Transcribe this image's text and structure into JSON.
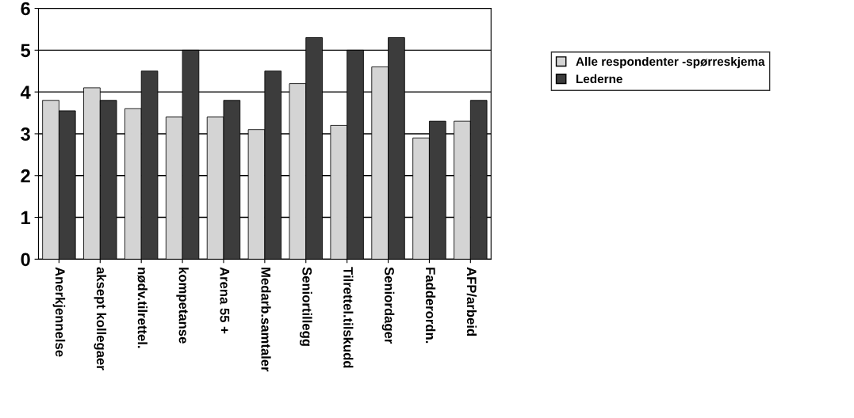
{
  "chart_data": {
    "type": "bar",
    "categories": [
      "Anerkjennelse",
      "aksept kollegaer",
      "nødv.tilrettel.",
      "kompetanse",
      "Arena 55 +",
      "Medarb.samtaler",
      "Seniortillegg",
      "Tilrettel.tilskudd",
      "Seniordager",
      "Fadderordn.",
      "AFP/arbeid"
    ],
    "series": [
      {
        "name": "Alle respondenter -spørreskjema",
        "color": "#d4d4d4",
        "values": [
          3.8,
          4.1,
          3.6,
          3.4,
          3.4,
          3.1,
          4.2,
          3.2,
          4.6,
          2.9,
          3.3
        ]
      },
      {
        "name": "Lederne",
        "color": "#3c3c3c",
        "values": [
          3.55,
          3.8,
          4.5,
          5.0,
          3.8,
          4.5,
          5.3,
          5.0,
          5.3,
          3.3,
          3.8
        ]
      }
    ],
    "ylim": [
      0,
      6
    ],
    "yticks": [
      0,
      1,
      2,
      3,
      4,
      5,
      6
    ],
    "grid": "y",
    "legend": "top right"
  }
}
